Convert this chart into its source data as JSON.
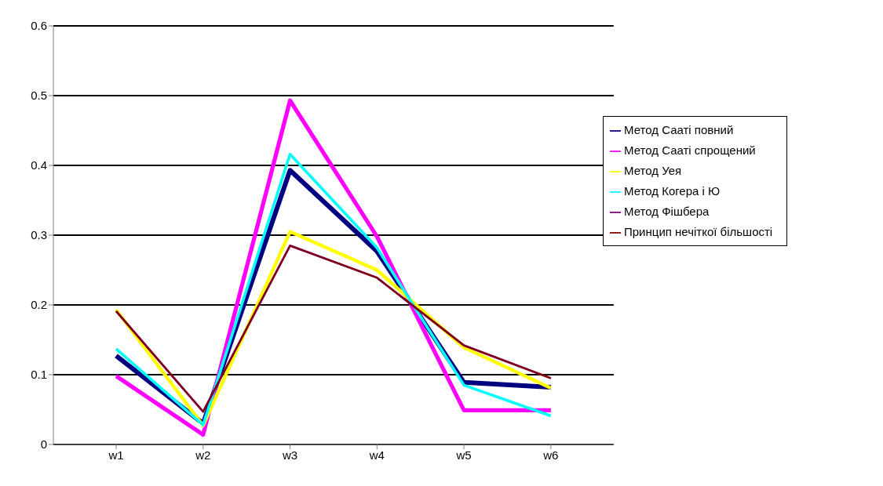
{
  "chart_data": {
    "type": "line",
    "categories": [
      "w1",
      "w2",
      "w3",
      "w4",
      "w5",
      "w6"
    ],
    "series": [
      {
        "name": "Метод Сааті повний",
        "color": "#000080",
        "values": [
          0.127,
          0.03,
          0.393,
          0.277,
          0.089,
          0.082
        ]
      },
      {
        "name": "Метод Сааті спрощений",
        "color": "#ff00ff",
        "values": [
          0.098,
          0.014,
          0.493,
          0.298,
          0.049,
          0.049
        ]
      },
      {
        "name": "Метод Уея",
        "color": "#ffff00",
        "values": [
          0.193,
          0.027,
          0.305,
          0.25,
          0.139,
          0.081
        ]
      },
      {
        "name": "Метод Когера і Ю",
        "color": "#00ffff",
        "values": [
          0.137,
          0.028,
          0.416,
          0.282,
          0.085,
          0.041
        ]
      },
      {
        "name": "Метод Фішбера",
        "color": "#800080",
        "values": [
          0.191,
          0.047,
          0.285,
          0.239,
          0.142,
          0.095
        ]
      },
      {
        "name": "Принцип нечіткої більшості",
        "color": "#800000",
        "values": [
          0.191,
          0.047,
          0.285,
          0.239,
          0.142,
          0.095
        ]
      }
    ],
    "ylim": [
      0,
      0.6
    ],
    "yticks": [
      0,
      0.1,
      0.2,
      0.3,
      0.4,
      0.5,
      0.6
    ],
    "grid": "y",
    "legend": "right",
    "marker": "none",
    "line_style": "solid"
  }
}
